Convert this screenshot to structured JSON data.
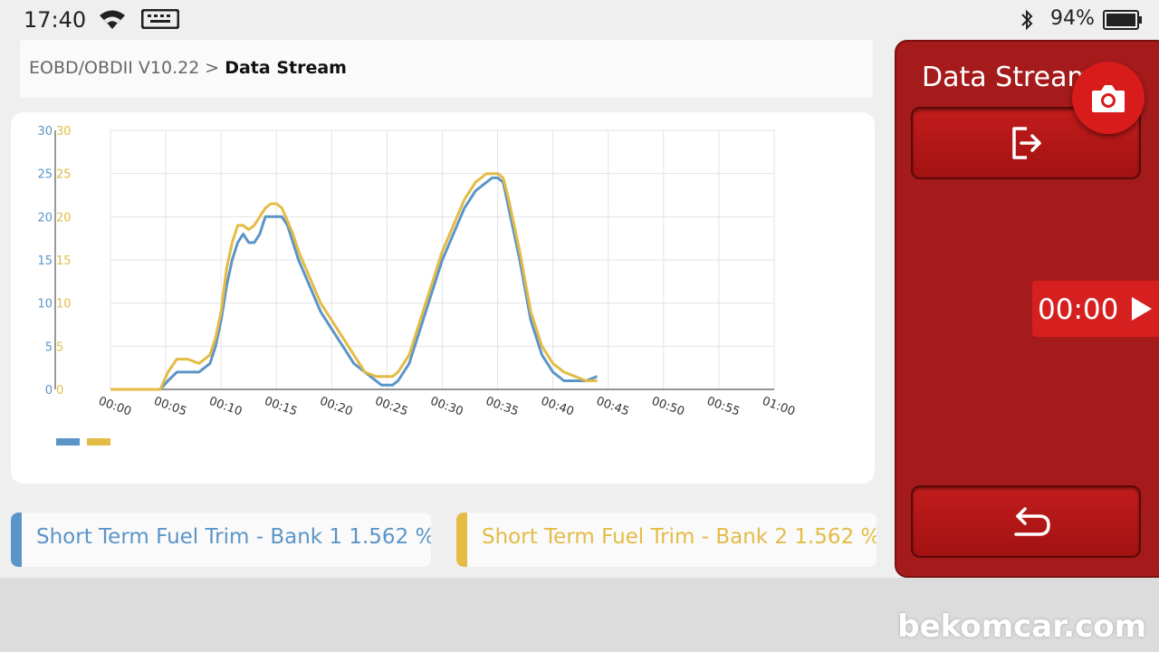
{
  "status_bar": {
    "time": "17:40",
    "battery": "94%"
  },
  "breadcrumb": {
    "parent": "EOBD/OBDII V10.22",
    "separator": ">",
    "current": "Data Stream"
  },
  "side_panel": {
    "title": "Data Stream",
    "timer": "00:00"
  },
  "watermark": "bekomcar.com",
  "series_cards": [
    {
      "label": "Short Term Fuel Trim - Bank 1 1.562 %",
      "color": "#5b95c8"
    },
    {
      "label": "Short Term Fuel Trim - Bank 2 1.562 %",
      "color": "#e3bb45"
    }
  ],
  "icons": {
    "wifi": "wifi-icon",
    "keyboard": "keyboard-icon",
    "bluetooth": "bluetooth-icon",
    "battery": "battery-icon",
    "camera": "camera-icon",
    "exit": "exit-icon",
    "back": "back-arrow-icon",
    "play": "play-icon"
  },
  "colors": {
    "accent_red": "#a51a1a",
    "series1": "#5b95c8",
    "series2": "#e3bb45"
  },
  "chart_data": {
    "type": "line",
    "title": "",
    "xlabel": "",
    "ylabel": "",
    "x_unit": "mm:ss",
    "xlim": [
      0,
      60
    ],
    "ylim": [
      0,
      30
    ],
    "x_ticks": [
      "00:00",
      "00:05",
      "00:10",
      "00:15",
      "00:20",
      "00:25",
      "00:30",
      "00:35",
      "00:40",
      "00:45",
      "00:50",
      "00:55",
      "01:00"
    ],
    "y_ticks": [
      "0",
      "5",
      "10",
      "15",
      "20",
      "25",
      "30"
    ],
    "grid": true,
    "legend": "bottom-left",
    "series": [
      {
        "color": "#5b95c8",
        "x": [
          0,
          4.5,
          5.2,
          6,
          7,
          8,
          9,
          9.5,
          10,
          10.5,
          11,
          11.5,
          12,
          12.5,
          13,
          13.5,
          14,
          14.5,
          15,
          15.5,
          16,
          16.5,
          17,
          18,
          19,
          20,
          21,
          22,
          23,
          24,
          24.5,
          25,
          25.5,
          26,
          27,
          28,
          29,
          30,
          31,
          32,
          33,
          34,
          34.5,
          35,
          35.5,
          36,
          37,
          38,
          39,
          40,
          41,
          42,
          43,
          44
        ],
        "y": [
          0,
          0,
          1,
          2,
          2,
          2,
          3,
          5,
          8,
          12,
          15,
          17,
          18,
          17,
          17,
          18,
          20,
          20,
          20,
          20,
          19,
          17,
          15,
          12,
          9,
          7,
          5,
          3,
          2,
          1,
          0.5,
          0.5,
          0.5,
          1,
          3,
          7,
          11,
          15,
          18,
          21,
          23,
          24,
          24.5,
          24.5,
          24,
          21,
          15,
          8,
          4,
          2,
          1,
          1,
          1,
          1.5
        ]
      },
      {
        "color": "#e3bb45",
        "x": [
          0,
          4.5,
          5.2,
          6,
          7,
          8,
          9,
          9.5,
          10,
          10.5,
          11,
          11.5,
          12,
          12.5,
          13,
          13.5,
          14,
          14.5,
          15,
          15.5,
          16,
          16.5,
          17,
          18,
          19,
          20,
          21,
          22,
          23,
          24,
          24.5,
          25,
          25.5,
          26,
          27,
          28,
          29,
          30,
          31,
          32,
          33,
          34,
          34.5,
          35,
          35.5,
          36,
          37,
          38,
          39,
          40,
          41,
          42,
          43,
          44
        ],
        "y": [
          0,
          0,
          2,
          3.5,
          3.5,
          3,
          4,
          6,
          9,
          14,
          17,
          19,
          19,
          18.5,
          19,
          20,
          21,
          21.5,
          21.5,
          21,
          19.5,
          18,
          16,
          13,
          10,
          8,
          6,
          4,
          2,
          1.5,
          1.5,
          1.5,
          1.5,
          2,
          4,
          8,
          12,
          16,
          19,
          22,
          24,
          25,
          25,
          25,
          24.5,
          22,
          16,
          9,
          5,
          3,
          2,
          1.5,
          1,
          1
        ]
      }
    ]
  }
}
